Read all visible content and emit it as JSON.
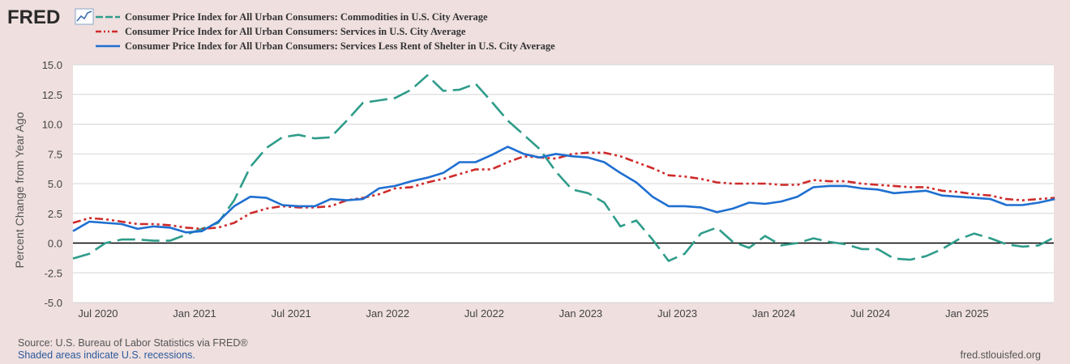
{
  "logo": {
    "text": "FRED"
  },
  "chart_data": {
    "type": "line",
    "ylabel": "Percent Change from Year Ago",
    "ylim": [
      -5,
      15
    ],
    "yticks": [
      15.0,
      12.5,
      10.0,
      7.5,
      5.0,
      2.5,
      0.0,
      -2.5,
      -5.0
    ],
    "xlim": [
      2020.37,
      2025.45
    ],
    "xticks": [
      {
        "label": "Jul 2020",
        "x": 2020.5
      },
      {
        "label": "Jan 2021",
        "x": 2021.0
      },
      {
        "label": "Jul 2021",
        "x": 2021.5
      },
      {
        "label": "Jan 2022",
        "x": 2022.0
      },
      {
        "label": "Jul 2022",
        "x": 2022.5
      },
      {
        "label": "Jan 2023",
        "x": 2023.0
      },
      {
        "label": "Jul 2023",
        "x": 2023.5
      },
      {
        "label": "Jan 2024",
        "x": 2024.0
      },
      {
        "label": "Jul 2024",
        "x": 2024.5
      },
      {
        "label": "Jan 2025",
        "x": 2025.0
      }
    ],
    "grid": true,
    "legend_position": "top-left",
    "series": [
      {
        "name": "Consumer Price Index for All Urban Consumers: Commodities in U.S. City Average",
        "color": "#2e9c8a",
        "dash": "long-dash",
        "x": [
          2020.37,
          2020.455,
          2020.538,
          2020.622,
          2020.705,
          2020.788,
          2020.872,
          2020.955,
          2021.038,
          2021.122,
          2021.205,
          2021.288,
          2021.372,
          2021.455,
          2021.538,
          2021.622,
          2021.705,
          2021.788,
          2021.872,
          2021.955,
          2022.038,
          2022.122,
          2022.205,
          2022.288,
          2022.372,
          2022.455,
          2022.538,
          2022.622,
          2022.705,
          2022.788,
          2022.872,
          2022.955,
          2023.038,
          2023.122,
          2023.205,
          2023.288,
          2023.372,
          2023.455,
          2023.538,
          2023.622,
          2023.705,
          2023.788,
          2023.872,
          2023.955,
          2024.038,
          2024.122,
          2024.205,
          2024.288,
          2024.372,
          2024.455,
          2024.538,
          2024.622,
          2024.705,
          2024.788,
          2024.872,
          2024.955,
          2025.038,
          2025.122,
          2025.205,
          2025.288,
          2025.372,
          2025.455
        ],
        "y": [
          -1.3,
          -0.9,
          0.0,
          0.3,
          0.3,
          0.2,
          0.2,
          0.7,
          1.2,
          1.7,
          3.6,
          6.4,
          8.0,
          8.9,
          9.1,
          8.8,
          8.9,
          10.3,
          11.8,
          12.0,
          12.2,
          12.9,
          14.1,
          12.8,
          12.9,
          13.4,
          11.9,
          10.3,
          9.1,
          7.9,
          6.0,
          4.5,
          4.2,
          3.4,
          1.4,
          1.9,
          0.3,
          -1.5,
          -0.9,
          0.8,
          1.3,
          0.1,
          -0.4,
          0.6,
          -0.2,
          0.0,
          0.4,
          0.1,
          -0.1,
          -0.5,
          -0.5,
          -1.3,
          -1.4,
          -1.1,
          -0.5,
          0.3,
          0.8,
          0.4,
          -0.1,
          -0.3,
          -0.2,
          0.5
        ]
      },
      {
        "name": "Consumer Price Index for All Urban Consumers: Services in U.S. City Average",
        "color": "#cf2a2a",
        "dash": "dash-dot-dot",
        "x": [
          2020.37,
          2020.455,
          2020.538,
          2020.622,
          2020.705,
          2020.788,
          2020.872,
          2020.955,
          2021.038,
          2021.122,
          2021.205,
          2021.288,
          2021.372,
          2021.455,
          2021.538,
          2021.622,
          2021.705,
          2021.788,
          2021.872,
          2021.955,
          2022.038,
          2022.122,
          2022.205,
          2022.288,
          2022.372,
          2022.455,
          2022.538,
          2022.622,
          2022.705,
          2022.788,
          2022.872,
          2022.955,
          2023.038,
          2023.122,
          2023.205,
          2023.288,
          2023.372,
          2023.455,
          2023.538,
          2023.622,
          2023.705,
          2023.788,
          2023.872,
          2023.955,
          2024.038,
          2024.122,
          2024.205,
          2024.288,
          2024.372,
          2024.455,
          2024.538,
          2024.622,
          2024.705,
          2024.788,
          2024.872,
          2024.955,
          2025.038,
          2025.122,
          2025.205,
          2025.288,
          2025.372,
          2025.455
        ],
        "y": [
          1.7,
          2.1,
          2.0,
          1.8,
          1.6,
          1.6,
          1.5,
          1.3,
          1.2,
          1.3,
          1.7,
          2.5,
          2.9,
          3.1,
          3.0,
          3.0,
          3.1,
          3.6,
          3.8,
          4.1,
          4.6,
          4.7,
          5.1,
          5.4,
          5.8,
          6.2,
          6.2,
          6.8,
          7.3,
          7.2,
          7.1,
          7.5,
          7.6,
          7.6,
          7.3,
          6.8,
          6.3,
          5.7,
          5.6,
          5.4,
          5.1,
          5.0,
          5.0,
          5.0,
          4.9,
          4.9,
          5.3,
          5.2,
          5.2,
          5.0,
          4.9,
          4.8,
          4.7,
          4.7,
          4.4,
          4.3,
          4.1,
          4.0,
          3.7,
          3.6,
          3.7,
          3.8
        ]
      },
      {
        "name": "Consumer Price Index for All Urban Consumers: Services Less Rent of Shelter in U.S. City Average",
        "color": "#1f6fd1",
        "dash": "solid",
        "x": [
          2020.37,
          2020.455,
          2020.538,
          2020.622,
          2020.705,
          2020.788,
          2020.872,
          2020.955,
          2021.038,
          2021.122,
          2021.205,
          2021.288,
          2021.372,
          2021.455,
          2021.538,
          2021.622,
          2021.705,
          2021.788,
          2021.872,
          2021.955,
          2022.038,
          2022.122,
          2022.205,
          2022.288,
          2022.372,
          2022.455,
          2022.538,
          2022.622,
          2022.705,
          2022.788,
          2022.872,
          2022.955,
          2023.038,
          2023.122,
          2023.205,
          2023.288,
          2023.372,
          2023.455,
          2023.538,
          2023.622,
          2023.705,
          2023.788,
          2023.872,
          2023.955,
          2024.038,
          2024.122,
          2024.205,
          2024.288,
          2024.372,
          2024.455,
          2024.538,
          2024.622,
          2024.705,
          2024.788,
          2024.872,
          2024.955,
          2025.038,
          2025.122,
          2025.205,
          2025.288,
          2025.372,
          2025.455
        ],
        "y": [
          1.0,
          1.8,
          1.7,
          1.6,
          1.2,
          1.4,
          1.3,
          0.9,
          1.0,
          1.8,
          3.1,
          3.9,
          3.8,
          3.2,
          3.1,
          3.1,
          3.7,
          3.6,
          3.7,
          4.6,
          4.8,
          5.2,
          5.5,
          5.9,
          6.8,
          6.8,
          7.4,
          8.1,
          7.5,
          7.2,
          7.5,
          7.3,
          7.2,
          6.8,
          5.9,
          5.1,
          3.9,
          3.1,
          3.1,
          3.0,
          2.6,
          2.9,
          3.4,
          3.3,
          3.5,
          3.9,
          4.7,
          4.8,
          4.8,
          4.6,
          4.5,
          4.2,
          4.3,
          4.4,
          4.0,
          3.9,
          3.8,
          3.7,
          3.2,
          3.2,
          3.4,
          3.7
        ]
      }
    ]
  },
  "footer": {
    "source": "Source: U.S. Bureau of Labor Statistics via FRED®",
    "recessions": "Shaded areas indicate U.S. recessions.",
    "site": "fred.stlouisfed.org"
  }
}
